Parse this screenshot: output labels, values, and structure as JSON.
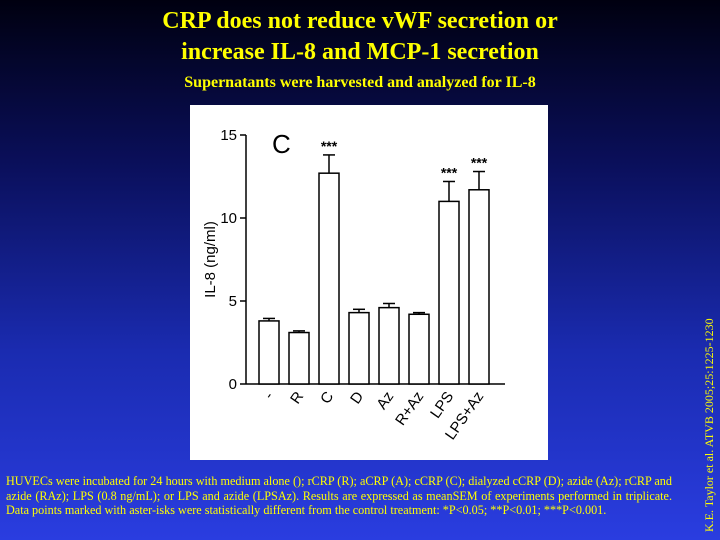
{
  "slide": {
    "title_line1": "CRP does not reduce vWF secretion or",
    "title_line2": "increase IL-8 and MCP-1 secretion",
    "subtitle": "Supernatants were harvested and analyzed for IL-8",
    "caption": "HUVECs were incubated for 24 hours with medium alone (); rCRP (R); aCRP (A); cCRP (C); dialyzed cCRP (D); azide (Az); rCRP and azide (RAz); LPS (0.8 ng/mL); or LPS and azide (LPSAz). Results are expressed as meanSEM of experiments performed in triplicate. Data points marked with aster-isks were statistically different from the control treatment: *P<0.05; **P<0.01; ***P<0.001.",
    "citation": "K.E. Taylor et al. ATVB 2005;25:1225-1230"
  },
  "colors": {
    "title_text": "#ffff00",
    "bar_fill": "#ffffff",
    "bar_stroke": "#000000"
  },
  "chart_data": {
    "type": "bar",
    "panel_label": "C",
    "ylabel": "IL-8 (ng/ml)",
    "ylim": [
      0,
      15
    ],
    "yticks": [
      0,
      5,
      10,
      15
    ],
    "categories": [
      "-",
      "R",
      "C",
      "D",
      "Az",
      "R+Az",
      "LPS",
      "LPS+Az"
    ],
    "values": [
      3.8,
      3.1,
      12.7,
      4.3,
      4.6,
      4.2,
      11.0,
      11.7
    ],
    "errors": [
      0.15,
      0.1,
      1.1,
      0.2,
      0.25,
      0.1,
      1.2,
      1.1
    ],
    "significance": [
      "",
      "",
      "***",
      "",
      "",
      "",
      "***",
      "***"
    ],
    "grid": false,
    "legend": "none"
  }
}
